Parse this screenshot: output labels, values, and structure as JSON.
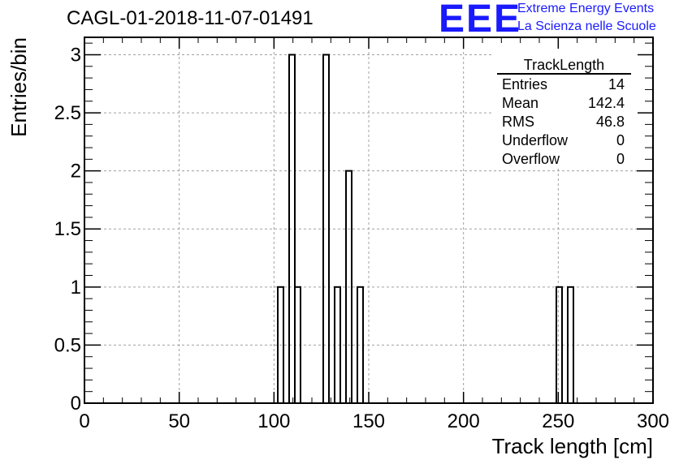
{
  "header": {
    "title": "CAGL-01-2018-11-07-01491",
    "logo_text": "EEE",
    "logo_line1": "Extreme Energy Events",
    "logo_line2": "La Scienza nelle Scuole"
  },
  "stats_box": {
    "title": "TrackLength",
    "rows": [
      {
        "label": "Entries",
        "value": "14"
      },
      {
        "label": "Mean",
        "value": "142.4"
      },
      {
        "label": "RMS",
        "value": "46.8"
      },
      {
        "label": "Underflow",
        "value": "0"
      },
      {
        "label": "Overflow",
        "value": "0"
      }
    ]
  },
  "colors": {
    "logo": "#1a1aff",
    "axis": "#000000",
    "grid": "#a0a0a0"
  },
  "chart_data": {
    "type": "histogram",
    "xlabel": "Track length [cm]",
    "ylabel": "Entries/bin",
    "xlim": [
      0,
      300
    ],
    "ylim": [
      0,
      3.15
    ],
    "grid": true,
    "legend_position": "top-right",
    "x_ticks": [
      "0",
      "50",
      "100",
      "150",
      "200",
      "250",
      "300"
    ],
    "y_ticks": [
      "0",
      "0.5",
      "1",
      "1.5",
      "2",
      "2.5",
      "3"
    ],
    "bin_width": 3,
    "bins": [
      {
        "x0": 102,
        "count": 1
      },
      {
        "x0": 108,
        "count": 3
      },
      {
        "x0": 111,
        "count": 1
      },
      {
        "x0": 126,
        "count": 3
      },
      {
        "x0": 132,
        "count": 1
      },
      {
        "x0": 138,
        "count": 2
      },
      {
        "x0": 144,
        "count": 1
      },
      {
        "x0": 249,
        "count": 1
      },
      {
        "x0": 255,
        "count": 1
      }
    ]
  }
}
